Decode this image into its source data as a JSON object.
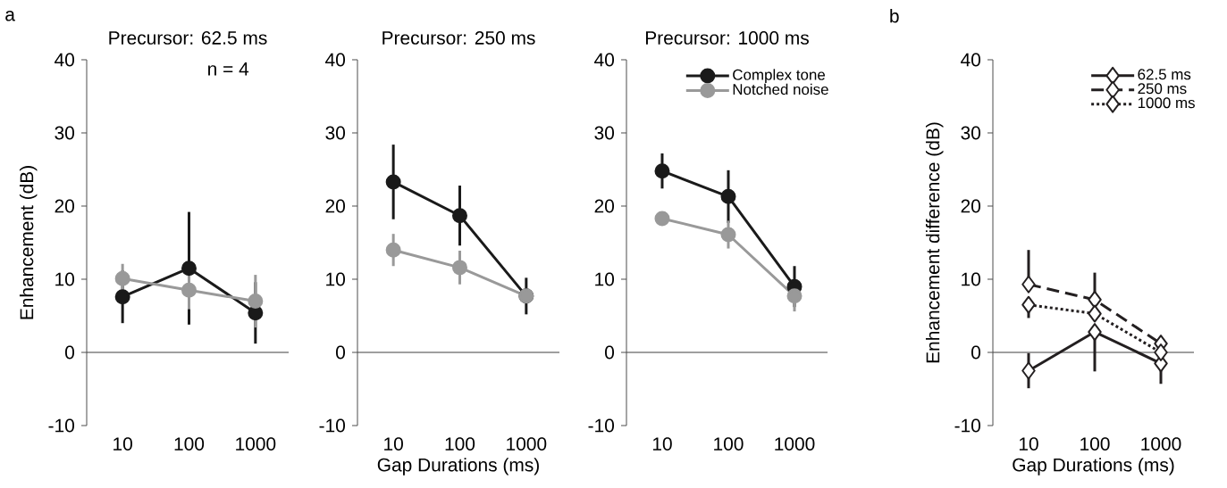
{
  "chart_data": [
    {
      "type": "line",
      "title": "Precursor: 62.5 ms",
      "ylabel": "Enhancement (dB)",
      "categories": [
        "10",
        "100",
        "1000"
      ],
      "ylim": [
        -10,
        40
      ],
      "yticks": [
        -10,
        0,
        10,
        20,
        30,
        40
      ],
      "marker": "circle",
      "annotations": [
        "a",
        "n = 4"
      ],
      "ref_lines": [
        {
          "axis": "y",
          "value": 0
        }
      ],
      "series": [
        {
          "color": "#1a1a1a",
          "values": [
            7.6,
            11.5,
            5.4
          ],
          "errors": [
            3.6,
            7.7,
            4.2
          ]
        },
        {
          "color": "#999999",
          "values": [
            10.1,
            8.5,
            7.0
          ],
          "errors": [
            2.0,
            2.6,
            3.6
          ]
        }
      ]
    },
    {
      "type": "line",
      "title": "Precursor: 250 ms",
      "xlabel": "Gap Durations (ms)",
      "categories": [
        "10",
        "100",
        "1000"
      ],
      "ylim": [
        -10,
        40
      ],
      "yticks": [
        -10,
        0,
        10,
        20,
        30,
        40
      ],
      "marker": "circle",
      "ref_lines": [
        {
          "axis": "y",
          "value": 0
        }
      ],
      "series": [
        {
          "color": "#1a1a1a",
          "values": [
            23.3,
            18.7,
            7.7
          ],
          "errors": [
            5.1,
            4.1,
            2.5
          ]
        },
        {
          "color": "#999999",
          "values": [
            14.0,
            11.6,
            7.7
          ],
          "errors": [
            2.2,
            2.3,
            null
          ]
        }
      ]
    },
    {
      "type": "line",
      "title": "Precursor: 1000 ms",
      "categories": [
        "10",
        "100",
        "1000"
      ],
      "ylim": [
        -10,
        40
      ],
      "yticks": [
        -10,
        0,
        10,
        20,
        30,
        40
      ],
      "marker": "circle",
      "legend": "top right",
      "ref_lines": [
        {
          "axis": "y",
          "value": 0
        }
      ],
      "series": [
        {
          "name": "Complex tone",
          "color": "#1a1a1a",
          "values": [
            24.8,
            21.3,
            9.0
          ],
          "errors": [
            2.4,
            3.6,
            2.8
          ]
        },
        {
          "name": "Notched noise",
          "color": "#999999",
          "values": [
            18.3,
            16.1,
            7.7
          ],
          "errors": [
            0.8,
            1.9,
            2.1
          ]
        }
      ]
    },
    {
      "type": "line",
      "ylabel": "Enhancement difference (dB)",
      "xlabel": "Gap Durations (ms)",
      "categories": [
        "10",
        "100",
        "1000"
      ],
      "ylim": [
        -10,
        40
      ],
      "yticks": [
        -10,
        0,
        10,
        20,
        30,
        40
      ],
      "marker": "diamond",
      "legend": "top right",
      "annotations": [
        "b"
      ],
      "ref_lines": [
        {
          "axis": "y",
          "value": 0
        }
      ],
      "series": [
        {
          "name": "62.5 ms",
          "color": "#231f20",
          "line_style": "solid",
          "values": [
            -2.5,
            2.8,
            -1.5
          ],
          "errors": [
            2.4,
            [
              -2.6,
              2.8
            ],
            [
              -4.3,
              -1.5
            ]
          ]
        },
        {
          "name": "250 ms",
          "color": "#231f20",
          "line_style": "dashed",
          "values": [
            9.3,
            7.2,
            1.2
          ],
          "errors": [
            [
              9.3,
              14.0
            ],
            [
              7.2,
              10.9
            ],
            [
              1.2,
              2.2
            ]
          ]
        },
        {
          "name": "1000 ms",
          "color": "#231f20",
          "line_style": "dotted",
          "values": [
            6.5,
            5.3,
            0.0
          ],
          "errors": [
            [
              4.7,
              6.5
            ],
            null,
            null
          ]
        }
      ]
    }
  ]
}
